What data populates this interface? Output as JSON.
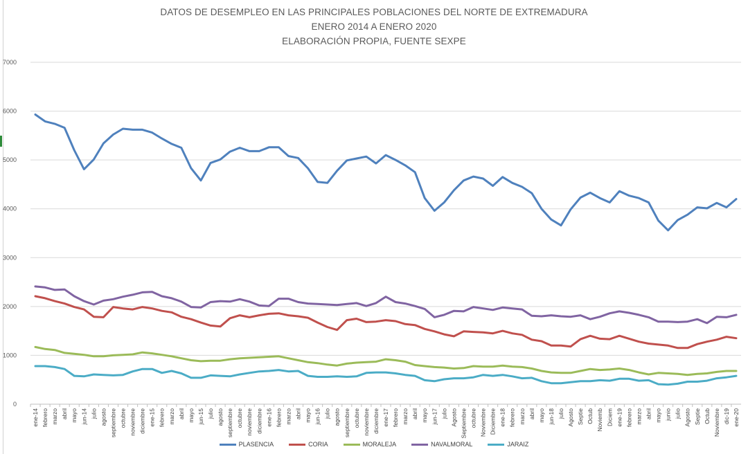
{
  "chart_data": {
    "type": "line",
    "title": [
      "DATOS DE DESEMPLEO EN LAS PRINCIPALES POBLACIONES DEL NORTE DE EXTREMADURA",
      "ENERO 2014 A  ENERO 2020",
      "ELABORACIÓN PROPIA, FUENTE SEXPE"
    ],
    "ylim": [
      0,
      7000
    ],
    "yticks": [
      "0",
      "1000",
      "2000",
      "3000",
      "4000",
      "5000",
      "6000",
      "7000"
    ],
    "grid": true,
    "legend_position": "bottom",
    "categories": [
      "ene-14",
      "febrero",
      "marzo",
      "abril",
      "mayo",
      "jun-14",
      "julio",
      "agosto",
      "septiembre",
      "octubre",
      "noviembre",
      "diciembre",
      "ene-15",
      "febrero",
      "marzo",
      "abril",
      "mayo",
      "jun-15",
      "julio",
      "agosto",
      "septiembre",
      "octubre",
      "noviembre",
      "diciembre",
      "ene-16",
      "febrero",
      "marzo",
      "abril",
      "mayo",
      "jun-16",
      "julio",
      "agosto",
      "septiembre",
      "octubre",
      "noviembre",
      "diciembre",
      "ene-17",
      "febrero",
      "marzo",
      "abril",
      "mayo",
      "jun-17",
      "julio",
      "Agosto",
      "Septiembre",
      "octubre",
      "Noviembre",
      "Diciembre",
      "ene-18",
      "febrero",
      "marzo",
      "abril",
      "mayo",
      "jun-18",
      "julio",
      "Agosto",
      "Septie",
      "Octub",
      "Noviemb",
      "Diciem",
      "ene-19",
      "febrero",
      "marzo",
      "abril",
      "mayo",
      "junio",
      "julio",
      "Agosto",
      "Septie",
      "Octub",
      "Noviembre",
      "dic-19",
      "ene-20"
    ],
    "series": [
      {
        "name": "PLASENCIA",
        "color": "#4f81bd",
        "values": [
          5930,
          5790,
          5740,
          5660,
          5200,
          4810,
          5010,
          5340,
          5520,
          5640,
          5620,
          5620,
          5560,
          5440,
          5330,
          5250,
          4830,
          4580,
          4940,
          5010,
          5170,
          5250,
          5180,
          5180,
          5260,
          5260,
          5080,
          5040,
          4830,
          4550,
          4530,
          4780,
          4990,
          5030,
          5070,
          4930,
          5100,
          5000,
          4890,
          4750,
          4220,
          3960,
          4130,
          4380,
          4580,
          4660,
          4620,
          4470,
          4650,
          4530,
          4450,
          4320,
          4000,
          3780,
          3660,
          3990,
          4230,
          4330,
          4220,
          4130,
          4360,
          4270,
          4220,
          4130,
          3760,
          3560,
          3770,
          3880,
          4030,
          4010,
          4120,
          4030,
          4200
        ]
      },
      {
        "name": "CORIA",
        "color": "#c0504d",
        "values": [
          2210,
          2170,
          2110,
          2060,
          1990,
          1940,
          1790,
          1780,
          1990,
          1960,
          1940,
          1990,
          1960,
          1910,
          1880,
          1790,
          1740,
          1670,
          1610,
          1590,
          1760,
          1820,
          1780,
          1820,
          1850,
          1860,
          1820,
          1800,
          1770,
          1670,
          1580,
          1520,
          1720,
          1750,
          1680,
          1690,
          1720,
          1700,
          1640,
          1620,
          1540,
          1490,
          1430,
          1390,
          1490,
          1480,
          1470,
          1450,
          1500,
          1450,
          1420,
          1320,
          1290,
          1200,
          1200,
          1180,
          1330,
          1400,
          1340,
          1330,
          1400,
          1340,
          1280,
          1240,
          1220,
          1200,
          1150,
          1150,
          1230,
          1280,
          1320,
          1380,
          1350
        ]
      },
      {
        "name": "MORALEJA",
        "color": "#9bbb59",
        "values": [
          1170,
          1130,
          1110,
          1050,
          1030,
          1010,
          980,
          980,
          1000,
          1010,
          1020,
          1060,
          1040,
          1010,
          980,
          940,
          900,
          880,
          890,
          890,
          920,
          940,
          950,
          960,
          970,
          980,
          940,
          900,
          860,
          840,
          810,
          790,
          830,
          850,
          860,
          870,
          920,
          900,
          870,
          800,
          780,
          760,
          750,
          730,
          740,
          780,
          770,
          770,
          790,
          770,
          760,
          730,
          680,
          650,
          640,
          640,
          680,
          720,
          700,
          710,
          730,
          700,
          650,
          610,
          640,
          630,
          620,
          600,
          620,
          630,
          660,
          680,
          680
        ]
      },
      {
        "name": "NAVALMORAL",
        "color": "#8064a2",
        "values": [
          2410,
          2390,
          2340,
          2350,
          2210,
          2110,
          2040,
          2120,
          2150,
          2200,
          2240,
          2290,
          2300,
          2210,
          2170,
          2100,
          1990,
          1980,
          2090,
          2110,
          2100,
          2150,
          2100,
          2020,
          2010,
          2160,
          2160,
          2090,
          2060,
          2050,
          2040,
          2030,
          2050,
          2070,
          2010,
          2070,
          2200,
          2090,
          2060,
          2010,
          1950,
          1780,
          1830,
          1910,
          1900,
          1990,
          1960,
          1930,
          1980,
          1960,
          1940,
          1810,
          1800,
          1820,
          1800,
          1790,
          1820,
          1740,
          1790,
          1860,
          1900,
          1870,
          1830,
          1780,
          1690,
          1690,
          1680,
          1690,
          1740,
          1660,
          1790,
          1780,
          1830
        ]
      },
      {
        "name": "JARAIZ",
        "color": "#4bacc6",
        "values": [
          780,
          780,
          760,
          720,
          580,
          570,
          610,
          600,
          590,
          600,
          670,
          720,
          720,
          640,
          680,
          630,
          540,
          540,
          590,
          580,
          570,
          610,
          640,
          670,
          680,
          700,
          670,
          680,
          580,
          560,
          560,
          570,
          560,
          570,
          640,
          650,
          650,
          630,
          600,
          580,
          490,
          470,
          510,
          530,
          530,
          550,
          600,
          580,
          600,
          570,
          530,
          540,
          470,
          430,
          430,
          450,
          470,
          470,
          490,
          480,
          520,
          520,
          480,
          490,
          410,
          400,
          420,
          460,
          460,
          480,
          530,
          550,
          580
        ]
      }
    ]
  }
}
